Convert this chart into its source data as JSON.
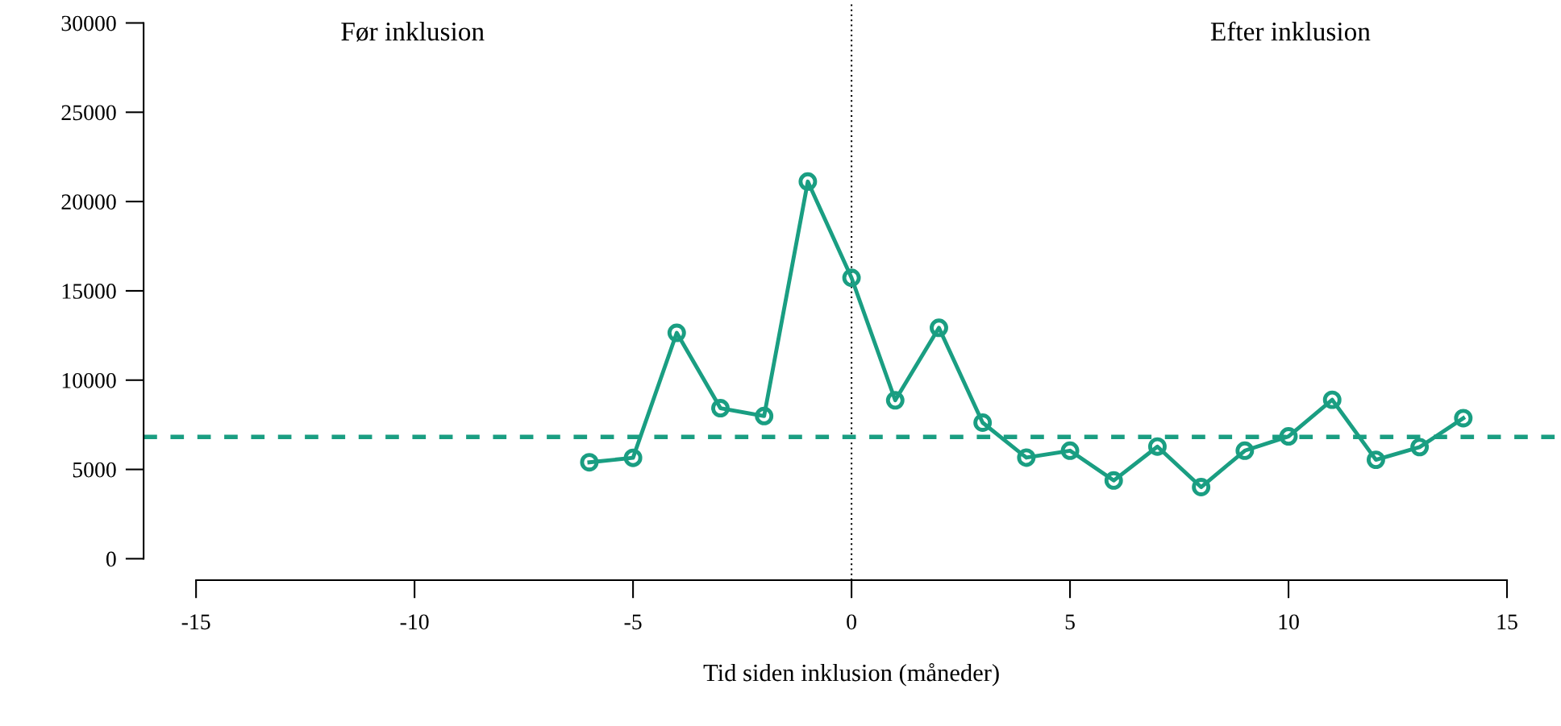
{
  "chart_data": {
    "type": "line",
    "xlabel": "Tid siden inklusion (måneder)",
    "x": [
      -6,
      -5,
      -4,
      -3,
      -2,
      -1,
      0,
      1,
      2,
      3,
      4,
      5,
      6,
      7,
      8,
      9,
      10,
      11,
      12,
      13,
      14
    ],
    "series": [
      {
        "color": "#1a9e82",
        "values": [
          5400,
          5650,
          12650,
          8430,
          7990,
          21120,
          15730,
          8870,
          12930,
          7620,
          5660,
          6050,
          4380,
          6280,
          4010,
          6050,
          6850,
          8900,
          5540,
          6250,
          7870
        ]
      }
    ],
    "marker": "circle",
    "line_style": "solid",
    "xlim": [
      -16.2,
      16.2
    ],
    "xticks": [
      -15,
      -10,
      -5,
      0,
      5,
      10,
      15
    ],
    "ylim": [
      -1200,
      31200
    ],
    "yticks": [
      0,
      5000,
      10000,
      15000,
      20000,
      25000,
      30000
    ],
    "ref_lines": [
      {
        "axis": "x",
        "value": 0,
        "color": "#000000",
        "line_style": "dotted"
      },
      {
        "axis": "y",
        "value": 6820,
        "color": "#1a9e82",
        "line_style": "dashed"
      }
    ],
    "annotations": [
      "Før inklusion",
      "Efter inklusion"
    ],
    "grid": false,
    "legend": false
  }
}
